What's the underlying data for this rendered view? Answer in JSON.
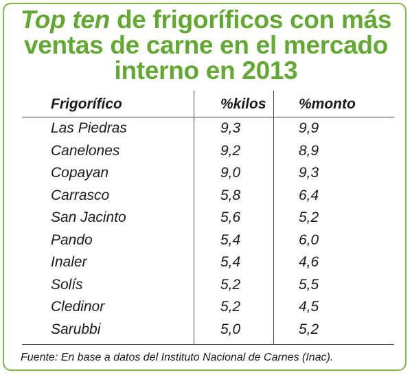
{
  "title": {
    "part1_italic": "Top ten",
    "part1_rest": " de frigoríficos con más",
    "line2": "ventas de carne en el mercado",
    "line3": "interno en 2013"
  },
  "chart_data": {
    "type": "table",
    "columns": [
      "Frigorífico",
      "%kilos",
      "%monto"
    ],
    "rows": [
      [
        "Las Piedras",
        "9,3",
        "9,9"
      ],
      [
        "Canelones",
        "9,2",
        "8,9"
      ],
      [
        "Copayan",
        "9,0",
        "9,3"
      ],
      [
        "Carrasco",
        "5,8",
        "6,4"
      ],
      [
        "San Jacinto",
        "5,6",
        "5,2"
      ],
      [
        "Pando",
        "5,4",
        "6,0"
      ],
      [
        "Inaler",
        "5,4",
        "4,6"
      ],
      [
        "Solís",
        "5,2",
        "5,5"
      ],
      [
        "Cledinor",
        "5,2",
        "4,5"
      ],
      [
        "Sarubbi",
        "5,0",
        "5,2"
      ]
    ]
  },
  "source": "Fuente:  En base a datos del Instituto Nacional de Carnes (Inac).",
  "colors": {
    "accent": "#62a832",
    "border": "#7ab648",
    "text": "#1a1a1a"
  }
}
